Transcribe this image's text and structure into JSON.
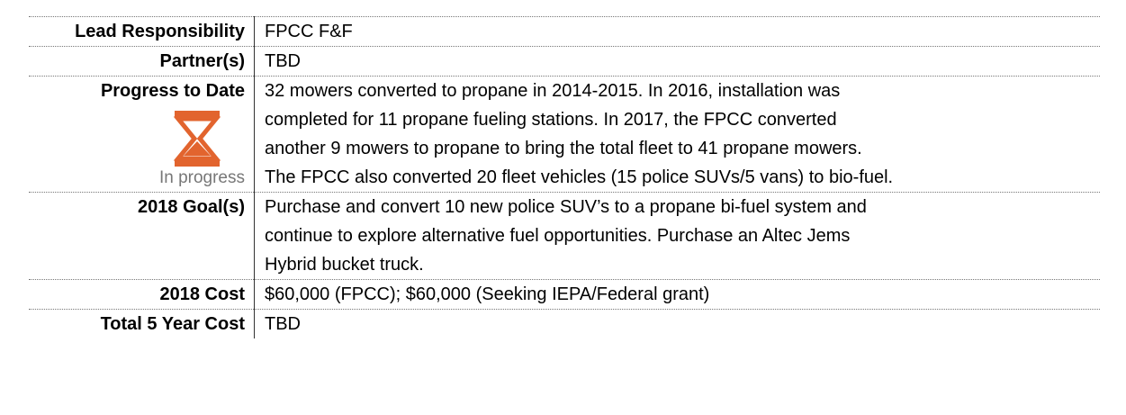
{
  "table": {
    "rows": [
      {
        "label": "Lead Responsibility",
        "value": [
          "FPCC F&F"
        ]
      },
      {
        "label": "Partner(s)",
        "value": [
          "TBD"
        ]
      },
      {
        "label": "Progress to Date",
        "status": "In progress",
        "value": [
          "32 mowers converted to propane in 2014-2015.  In 2016, installation was",
          "completed for 11 propane fueling stations.  In 2017, the FPCC converted",
          "another 9 mowers to propane to bring the total fleet to 41 propane mowers.",
          "The FPCC also converted 20 fleet vehicles (15 police SUVs/5 vans) to bio-fuel."
        ]
      },
      {
        "label": "2018 Goal(s)",
        "value": [
          "Purchase and convert 10 new police SUV’s to a propane bi-fuel system and",
          "continue to explore alternative fuel opportunities.  Purchase an Altec Jems",
          "Hybrid bucket truck."
        ]
      },
      {
        "label": "2018 Cost",
        "value": [
          "$60,000 (FPCC); $60,000 (Seeking IEPA/Federal grant)"
        ]
      },
      {
        "label": "Total 5 Year Cost",
        "value": [
          "TBD"
        ]
      }
    ]
  }
}
